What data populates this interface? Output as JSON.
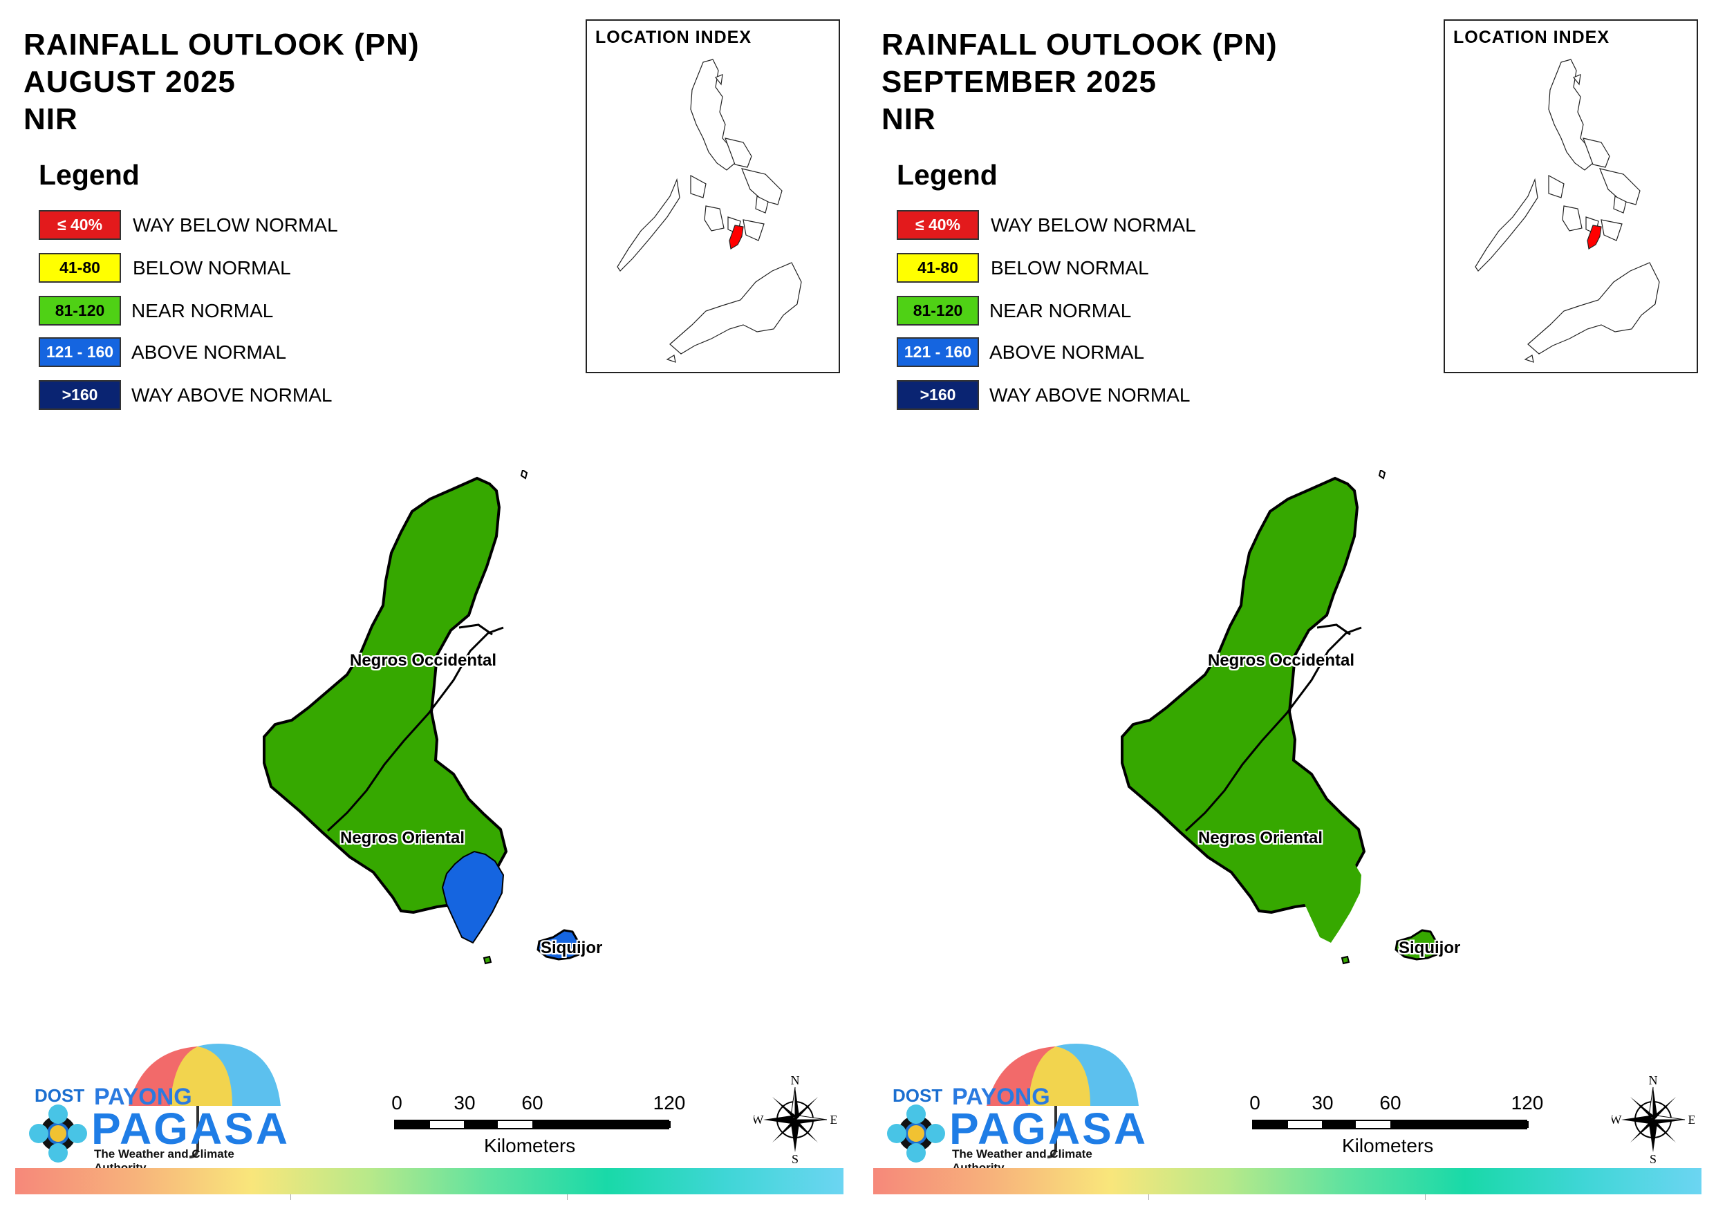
{
  "panels": [
    {
      "title_line1": "RAINFALL OUTLOOK (PN)",
      "title_line2": "AUGUST 2025",
      "title_line3": "NIR"
    },
    {
      "title_line1": "RAINFALL OUTLOOK (PN)",
      "title_line2": "SEPTEMBER 2025",
      "title_line3": "NIR"
    }
  ],
  "legend": {
    "title": "Legend",
    "items": [
      {
        "range": "≤ 40%",
        "label": "WAY BELOW NORMAL",
        "color": "#e31a1c",
        "text_color": "#ffffff"
      },
      {
        "range": "41-80",
        "label": "BELOW NORMAL",
        "color": "#ffff00",
        "text_color": "#000000"
      },
      {
        "range": "81-120",
        "label": "NEAR NORMAL",
        "color": "#4fd115",
        "text_color": "#000000"
      },
      {
        "range": "121 - 160",
        "label": "ABOVE NORMAL",
        "color": "#1565e0",
        "text_color": "#ffffff"
      },
      {
        "range": ">160",
        "label": "WAY ABOVE NORMAL",
        "color": "#0a2472",
        "text_color": "#ffffff"
      }
    ]
  },
  "location_index": {
    "title": "LOCATION INDEX",
    "highlight_color": "#ff0000"
  },
  "map_labels": {
    "negros_occidental": "Negros Occidental",
    "negros_oriental": "Negros Oriental",
    "siquijor": "Siquijor"
  },
  "region_colors": {
    "near_normal": "#36a800",
    "above_normal": "#1565e0"
  },
  "logo": {
    "dost": "DOST",
    "payong": "PAYONG",
    "pagasa": "PAGASA",
    "tagline": "The Weather and Climate Authority"
  },
  "scale": {
    "ticks": [
      "0",
      "30",
      "60",
      "120"
    ],
    "units": "Kilometers"
  },
  "compass": {
    "n": "N",
    "s": "S",
    "e": "E",
    "w": "W"
  }
}
